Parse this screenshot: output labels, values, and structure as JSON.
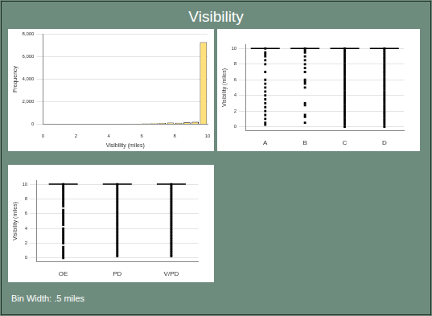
{
  "title": "Visibility",
  "note": "Bin Width: .5 miles",
  "chart_data": [
    {
      "type": "histogram",
      "x_label": "Visibility (miles)",
      "y_label": "Frequency",
      "bins": [
        0,
        0.5,
        1,
        1.5,
        2,
        2.5,
        3,
        3.5,
        4,
        4.5,
        5,
        5.5,
        6,
        6.5,
        7,
        7.5,
        8,
        8.5,
        9,
        9.5,
        10
      ],
      "counts": [
        40,
        20,
        20,
        25,
        30,
        30,
        25,
        30,
        35,
        35,
        40,
        45,
        70,
        90,
        100,
        130,
        110,
        150,
        200,
        7300
      ],
      "color": "#ffe07a",
      "xlim": [
        0,
        10
      ],
      "xticks": [
        0,
        2,
        4,
        6,
        8,
        10
      ],
      "ylim": [
        0,
        8000
      ],
      "yticks": [
        0,
        2000,
        4000,
        6000,
        8000
      ],
      "grid": true
    },
    {
      "type": "strip",
      "y_label": "Visibility (miles)",
      "categories": [
        "A",
        "B",
        "C",
        "D"
      ],
      "values": [
        [
          10,
          9.5,
          9.25,
          9,
          8.5,
          8,
          7,
          6,
          5.5,
          5,
          4.5,
          4,
          3.5,
          3,
          2.5,
          2,
          1.5,
          1,
          0.5,
          0.25
        ],
        [
          10,
          9.75,
          9.5,
          9,
          8.5,
          8,
          7.5,
          7,
          6,
          5.75,
          5.5,
          5,
          3,
          2.75,
          1.5,
          1.25,
          0.5
        ],
        [
          0,
          0.25,
          0.5,
          0.75,
          1,
          1.25,
          1.5,
          1.75,
          2,
          2.25,
          2.5,
          2.75,
          3,
          3.25,
          3.5,
          3.75,
          4,
          4.25,
          4.5,
          4.75,
          5,
          5.25,
          5.5,
          5.75,
          6,
          6.25,
          6.5,
          6.75,
          7,
          7.25,
          7.5,
          7.75,
          8,
          8.25,
          8.5,
          8.75,
          9,
          9.25,
          9.5,
          9.75,
          10
        ],
        [
          0,
          0.25,
          0.5,
          0.75,
          1,
          1.25,
          1.5,
          1.75,
          2,
          2.25,
          2.5,
          2.75,
          3,
          3.25,
          3.5,
          3.75,
          4,
          4.25,
          4.5,
          4.75,
          5,
          5.25,
          5.5,
          5.75,
          6,
          6.25,
          6.5,
          6.75,
          7,
          7.25,
          7.5,
          7.75,
          8,
          8.25,
          8.5,
          8.75,
          9,
          9.25,
          9.5,
          9.75,
          10
        ]
      ],
      "medians": [
        10,
        10,
        10,
        10
      ],
      "color": "#000000",
      "ylim": [
        -0.5,
        10.5
      ],
      "yticks": [
        0,
        2,
        4,
        6,
        8,
        10
      ],
      "grid": true
    },
    {
      "type": "strip",
      "y_label": "Visibility (miles)",
      "categories": [
        "OE",
        "PD",
        "V/PD"
      ],
      "values": [
        [
          0,
          0.25,
          0.5,
          0.75,
          1,
          1.25,
          1.5,
          2,
          2.25,
          2.5,
          2.75,
          3,
          3.25,
          3.5,
          3.75,
          4,
          4.5,
          4.75,
          5,
          5.25,
          5.5,
          5.75,
          6,
          6.25,
          6.5,
          7,
          7.25,
          7.5,
          7.75,
          8,
          8.25,
          8.5,
          8.75,
          9,
          9.25,
          9.5,
          9.75,
          10
        ],
        [
          0.25,
          0.5,
          0.75,
          1,
          1.25,
          1.5,
          1.75,
          2,
          2.25,
          2.5,
          2.75,
          3,
          3.25,
          3.5,
          3.75,
          4,
          4.25,
          4.5,
          4.75,
          5,
          5.25,
          5.5,
          5.75,
          6,
          6.25,
          6.5,
          6.75,
          7,
          7.25,
          7.5,
          7.75,
          8,
          8.25,
          8.5,
          8.75,
          9,
          9.25,
          9.5,
          9.75,
          10
        ],
        [
          0.25,
          0.5,
          0.75,
          1,
          1.25,
          1.5,
          1.75,
          2,
          2.25,
          2.5,
          2.75,
          3,
          3.25,
          3.5,
          3.75,
          4,
          4.25,
          4.5,
          4.75,
          5,
          5.25,
          5.5,
          5.75,
          6,
          6.25,
          6.5,
          6.75,
          7,
          7.25,
          7.5,
          7.75,
          8,
          8.25,
          8.5,
          8.75,
          9,
          9.25,
          9.5,
          9.75,
          10
        ]
      ],
      "medians": [
        10,
        10,
        10
      ],
      "color": "#000000",
      "ylim": [
        -0.5,
        10.5
      ],
      "yticks": [
        0,
        2,
        4,
        6,
        8,
        10
      ],
      "grid": true
    }
  ]
}
